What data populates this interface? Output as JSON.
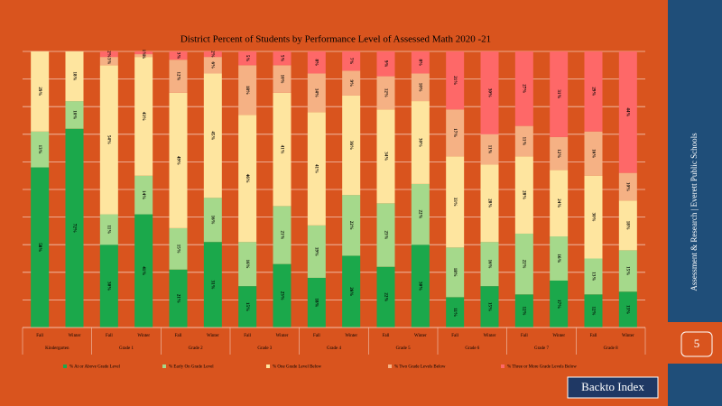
{
  "chart_data": {
    "type": "stacked_bar",
    "title": "District Percent of Students by Performance Level of Assessed Math 2020 -21",
    "categories": [
      "Fall",
      "Winter",
      "Fall",
      "Winter",
      "Fall",
      "Winter",
      "Fall",
      "Winter",
      "Fall",
      "Winter",
      "Fall",
      "Winter",
      "Fall",
      "Winter",
      "Fall",
      "Winter",
      "Fall",
      "Winter"
    ],
    "groups": [
      "Kindergarten",
      "Grade 1",
      "Grade 2",
      "Grade 3",
      "Grade 4",
      "Grade 5",
      "Grade 6",
      "Grade 7",
      "Grade 8"
    ],
    "ylim": [
      0,
      100
    ],
    "yticks": [
      0,
      10,
      20,
      30,
      40,
      50,
      60,
      70,
      80,
      90,
      100
    ],
    "grid": true,
    "series": [
      {
        "name": "% At or Above Grade Level",
        "color": "#1ba84b",
        "values": [
          58,
          72,
          30,
          41,
          21,
          31,
          15,
          23,
          18,
          26,
          22,
          30,
          11,
          15,
          12,
          17,
          12,
          13
        ],
        "value_labels": [
          "58%",
          "72%",
          "30%",
          "41%",
          "21%",
          "31%",
          "15%",
          "23%",
          "18%",
          "26%",
          "22%",
          "30%",
          "11%",
          "15%",
          "12%",
          "17%",
          "12%",
          "13%"
        ]
      },
      {
        "name": "% Early On Grade Level",
        "color": "#a5d98b",
        "values": [
          13,
          10,
          11,
          14,
          15,
          16,
          16,
          21,
          19,
          22,
          23,
          22,
          18,
          16,
          22,
          16,
          13,
          15
        ],
        "value_labels": [
          "13%",
          "10%",
          "11%",
          "14%",
          "15%",
          "16%",
          "16%",
          "21%",
          "19%",
          "22%",
          "23%",
          "22%",
          "18%",
          "16%",
          "22%",
          "16%",
          "13%",
          "15%"
        ]
      },
      {
        "name": "% One Grade Level Below",
        "color": "#fee59f",
        "values": [
          29,
          18,
          54,
          43,
          49,
          45,
          46,
          41,
          41,
          36,
          34,
          30,
          33,
          28,
          28,
          24,
          30,
          18
        ],
        "value_labels": [
          "29%",
          "18%",
          "54%",
          "43%",
          "49%",
          "45%",
          "46%",
          "41%",
          "41%",
          "36%",
          "34%",
          "30%",
          "33%",
          "28%",
          "28%",
          "24%",
          "30%",
          "18%"
        ]
      },
      {
        "name": "% Two Grade Levels Below",
        "color": "#f5b184",
        "values": [
          0,
          0,
          3,
          1,
          12,
          6,
          18,
          10,
          14,
          9,
          12,
          10,
          17,
          11,
          11,
          12,
          16,
          10
        ],
        "value_labels": [
          null,
          null,
          "3%",
          "1%",
          "12%",
          "6%",
          "18%",
          "10%",
          "14%",
          "9%",
          "12%",
          "10%",
          "17%",
          "11%",
          "11%",
          "12%",
          "16%",
          "10%"
        ]
      },
      {
        "name": "% Three or More Grade Levels Below",
        "color": "#fe6868",
        "values": [
          0,
          0,
          2,
          1,
          3,
          2,
          5,
          5,
          8,
          7,
          9,
          8,
          21,
          30,
          27,
          31,
          29,
          44
        ],
        "value_labels": [
          null,
          null,
          "2%",
          "1%",
          "3%",
          "2%",
          "5%",
          "5%",
          "8%",
          "7%",
          "9%",
          "8%",
          "21%",
          "30%",
          "27%",
          "31%",
          "29%",
          "44%"
        ]
      }
    ]
  },
  "sidebar": {
    "text": "Assessment & Research | Everett Public Schools",
    "page": "5",
    "button": "Backto Index"
  }
}
